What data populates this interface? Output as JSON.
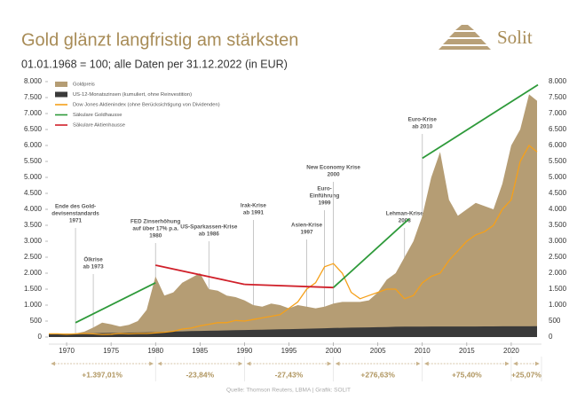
{
  "logo": "Solit",
  "chart_data": {
    "type": "area",
    "title": "Gold glänzt langfristig am stärksten",
    "subtitle": "01.01.1968 = 100; alle Daten per 31.12.2022 (in EUR)",
    "source": "Quelle: Thomson Reuters, LBMA | Grafik: SOLIT",
    "x": [
      1968,
      1969,
      1970,
      1971,
      1972,
      1973,
      1974,
      1975,
      1976,
      1977,
      1978,
      1979,
      1980,
      1981,
      1982,
      1983,
      1984,
      1985,
      1986,
      1987,
      1988,
      1989,
      1990,
      1991,
      1992,
      1993,
      1994,
      1995,
      1996,
      1997,
      1998,
      1999,
      2000,
      2001,
      2002,
      2003,
      2004,
      2005,
      2006,
      2007,
      2008,
      2009,
      2010,
      2011,
      2012,
      2013,
      2014,
      2015,
      2016,
      2017,
      2018,
      2019,
      2020,
      2021,
      2022,
      2022.9
    ],
    "xlim": [
      1968,
      2023.4
    ],
    "xticks": [
      1970,
      1975,
      1980,
      1985,
      1990,
      1995,
      2000,
      2005,
      2010,
      2015,
      2020
    ],
    "ylim": [
      0,
      8000
    ],
    "yticks": [
      {
        "value": 0,
        "label": "0"
      },
      {
        "value": 500,
        "label": "500"
      },
      {
        "value": 1000,
        "label": "1.000"
      },
      {
        "value": 1500,
        "label": "1.500"
      },
      {
        "value": 2000,
        "label": "2.000"
      },
      {
        "value": 2500,
        "label": "2.500"
      },
      {
        "value": 3000,
        "label": "3.000"
      },
      {
        "value": 3500,
        "label": "3.500"
      },
      {
        "value": 4000,
        "label": "4.000"
      },
      {
        "value": 4500,
        "label": "4.500"
      },
      {
        "value": 5000,
        "label": "5.000"
      },
      {
        "value": 5500,
        "label": "5.500"
      },
      {
        "value": 6000,
        "label": "6.000"
      },
      {
        "value": 6500,
        "label": "6.500"
      },
      {
        "value": 7000,
        "label": "7.000"
      },
      {
        "value": 7500,
        "label": "7.500"
      },
      {
        "value": 8000,
        "label": "8.000"
      }
    ],
    "legend": "top-left",
    "series": [
      {
        "name": "Goldpreis",
        "kind": "area",
        "color": "#b59d74",
        "values": [
          100,
          110,
          100,
          110,
          170,
          300,
          450,
          400,
          330,
          380,
          500,
          850,
          1900,
          1300,
          1400,
          1700,
          1850,
          2000,
          1500,
          1450,
          1300,
          1250,
          1150,
          1000,
          950,
          1050,
          1000,
          900,
          1000,
          950,
          900,
          950,
          1050,
          1100,
          1100,
          1100,
          1150,
          1400,
          1800,
          2000,
          2500,
          3000,
          3800,
          5000,
          5800,
          4300,
          3800,
          4000,
          4200,
          4100,
          4000,
          4800,
          6000,
          6500,
          7600,
          7400
        ]
      },
      {
        "name": "US-12-Monatszinsen (kumuliert, ohne Reinvestition)",
        "kind": "area",
        "color": "#3a3a3a",
        "values": [
          100,
          104,
          108,
          112,
          116,
          120,
          124,
          128,
          133,
          138,
          143,
          148,
          155,
          163,
          171,
          178,
          185,
          191,
          197,
          202,
          207,
          213,
          220,
          226,
          231,
          236,
          242,
          248,
          254,
          260,
          267,
          274,
          282,
          289,
          294,
          298,
          302,
          308,
          315,
          322,
          328,
          329,
          329,
          330,
          330,
          330,
          331,
          331,
          331,
          332,
          333,
          335,
          335,
          335,
          336,
          340
        ]
      },
      {
        "name": "Dow Jones Aktienindex (ohne Berücksichtigung von Dividenden)",
        "kind": "line",
        "color": "#f5a01a",
        "values": [
          100,
          100,
          90,
          100,
          110,
          100,
          80,
          90,
          110,
          100,
          110,
          110,
          130,
          150,
          180,
          250,
          280,
          350,
          400,
          450,
          450,
          520,
          500,
          550,
          600,
          650,
          700,
          900,
          1100,
          1500,
          1700,
          2200,
          2300,
          2000,
          1400,
          1200,
          1300,
          1400,
          1500,
          1500,
          1200,
          1300,
          1700,
          1900,
          2000,
          2400,
          2700,
          3000,
          3200,
          3300,
          3500,
          4000,
          4300,
          5500,
          6000,
          5800
        ]
      },
      {
        "name": "Säkulare Goldhausse",
        "kind": "trend",
        "color": "#2e9a3a",
        "x": [
          1971,
          1980,
          1990,
          2000,
          2008.5,
          2009,
          2010,
          2023
        ],
        "values": [
          450,
          1700,
          null,
          1550,
          3700,
          null,
          5600,
          7900
        ]
      },
      {
        "name": "Säkulare Aktienhausse",
        "kind": "trend",
        "color": "#d0202a",
        "x": [
          1980,
          1990,
          1990.1,
          1990,
          2000
        ],
        "values": [
          2250,
          1650,
          null,
          1650,
          1550
        ]
      }
    ],
    "annotations": [
      {
        "text": [
          "Ende des Gold-",
          "devisenstandards",
          "1971"
        ],
        "x": 1971
      },
      {
        "text": [
          "Ölkrise",
          "ab 1973"
        ],
        "x": 1973
      },
      {
        "text": [
          "FED Zinserhöhung",
          "auf über 17% p.a.",
          "1980"
        ],
        "x": 1980
      },
      {
        "text": [
          "US-Sparkassen-Krise",
          "ab 1986"
        ],
        "x": 1986
      },
      {
        "text": [
          "Irak-Krise",
          "ab 1991"
        ],
        "x": 1991
      },
      {
        "text": [
          "Asien-Krise",
          "1997"
        ],
        "x": 1997
      },
      {
        "text": [
          "Euro-",
          "Einführung",
          "1999"
        ],
        "x": 1999
      },
      {
        "text": [
          "New Economy Krise",
          "2000"
        ],
        "x": 2000
      },
      {
        "text": [
          "Lehman-Krise",
          "2008"
        ],
        "x": 2008
      },
      {
        "text": [
          "Euro-Krise",
          "ab 2010"
        ],
        "x": 2010
      }
    ],
    "periods": [
      {
        "label": "+1.397,01%",
        "from": 1968,
        "to": 1980
      },
      {
        "label": "-23,84%",
        "from": 1980,
        "to": 1990
      },
      {
        "label": "-27,43%",
        "from": 1990,
        "to": 2000
      },
      {
        "label": "+276,63%",
        "from": 2000,
        "to": 2010
      },
      {
        "label": "+75,40%",
        "from": 2010,
        "to": 2020
      },
      {
        "label": "+25,07%",
        "from": 2020,
        "to": 2023.4
      }
    ]
  }
}
